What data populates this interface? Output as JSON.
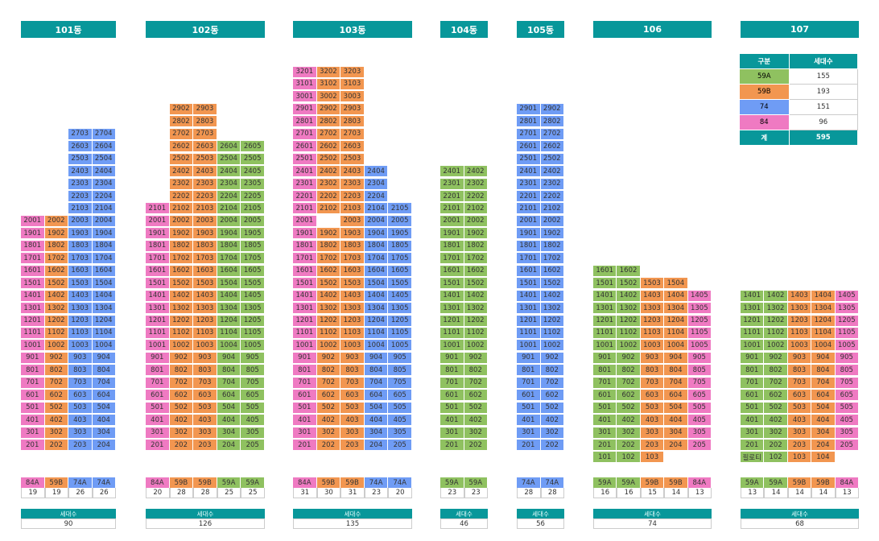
{
  "colors": {
    "59A": "#8fc160",
    "59B": "#f29650",
    "74": "#6f9cf5",
    "84": "#ef7ac2"
  },
  "buildings": [
    {
      "name": "101동",
      "top_floor": 27,
      "units": [
        {
          "suffix": "01",
          "type": "84",
          "top": 20
        },
        {
          "suffix": "02",
          "type": "59B",
          "top": 20
        },
        {
          "suffix": "03",
          "type": "74",
          "top": 27
        },
        {
          "suffix": "04",
          "type": "74",
          "top": 27
        }
      ],
      "type_labels": [
        "84A",
        "59B",
        "74A",
        "74A"
      ],
      "counts": [
        "19",
        "19",
        "26",
        "26"
      ],
      "total_label": "세대수",
      "total": "90"
    },
    {
      "name": "102동",
      "top_floor": 29,
      "units": [
        {
          "suffix": "01",
          "type": "84",
          "top": 21
        },
        {
          "suffix": "02",
          "type": "59B",
          "top": 29
        },
        {
          "suffix": "03",
          "type": "59B",
          "top": 29
        },
        {
          "suffix": "04",
          "type": "59A",
          "top": 26
        },
        {
          "suffix": "05",
          "type": "59A",
          "top": 26
        }
      ],
      "type_labels": [
        "84A",
        "59B",
        "59B",
        "59A",
        "59A"
      ],
      "counts": [
        "20",
        "28",
        "28",
        "25",
        "25"
      ],
      "total_label": "세대수",
      "total": "126"
    },
    {
      "name": "103동",
      "top_floor": 32,
      "units": [
        {
          "suffix": "01",
          "type": "84",
          "top": 32
        },
        {
          "suffix": "02",
          "type": "59B",
          "top": 32
        },
        {
          "suffix": "03",
          "type": "59B",
          "top": 32
        },
        {
          "suffix": "04",
          "type": "74",
          "top": 24
        },
        {
          "suffix": "05",
          "type": "74",
          "top": 21
        }
      ],
      "empty": [
        "2002"
      ],
      "type_labels": [
        "84A",
        "59B",
        "59B",
        "74A",
        "74A"
      ],
      "counts": [
        "31",
        "30",
        "31",
        "23",
        "20"
      ],
      "total_label": "세대수",
      "total": "135"
    },
    {
      "name": "104동",
      "top_floor": 24,
      "units": [
        {
          "suffix": "01",
          "type": "59A",
          "top": 24
        },
        {
          "suffix": "02",
          "type": "59A",
          "top": 24
        }
      ],
      "type_labels": [
        "59A",
        "59A"
      ],
      "counts": [
        "23",
        "23"
      ],
      "total_label": "세대수",
      "total": "46"
    },
    {
      "name": "105동",
      "top_floor": 29,
      "units": [
        {
          "suffix": "01",
          "type": "74",
          "top": 29
        },
        {
          "suffix": "02",
          "type": "74",
          "top": 29
        }
      ],
      "type_labels": [
        "74A",
        "74A"
      ],
      "counts": [
        "28",
        "28"
      ],
      "total_label": "세대수",
      "total": "56"
    },
    {
      "name": "106",
      "top_floor": 16,
      "bottom_floor": 1,
      "units": [
        {
          "suffix": "01",
          "type": "59A",
          "top": 16
        },
        {
          "suffix": "02",
          "type": "59A",
          "top": 16
        },
        {
          "suffix": "03",
          "type": "59B",
          "top": 15
        },
        {
          "suffix": "04",
          "type": "59B",
          "top": 15
        },
        {
          "suffix": "05",
          "type": "84",
          "top": 14
        }
      ],
      "first_floor": [
        "101",
        "102",
        "103"
      ],
      "type_labels": [
        "59A",
        "59A",
        "59B",
        "59B",
        "84A"
      ],
      "counts": [
        "16",
        "16",
        "15",
        "14",
        "13"
      ],
      "total_label": "세대수",
      "total": "74"
    },
    {
      "name": "107",
      "top_floor": 14,
      "bottom_floor": 1,
      "units": [
        {
          "suffix": "01",
          "type": "59A",
          "top": 14
        },
        {
          "suffix": "02",
          "type": "59A",
          "top": 14
        },
        {
          "suffix": "03",
          "type": "59B",
          "top": 14
        },
        {
          "suffix": "04",
          "type": "59B",
          "top": 14
        },
        {
          "suffix": "05",
          "type": "84",
          "top": 14
        }
      ],
      "first_floor": [
        "필로티",
        "102",
        "103",
        "104"
      ],
      "type_labels": [
        "59A",
        "59A",
        "59B",
        "59B",
        "84A"
      ],
      "counts": [
        "13",
        "14",
        "14",
        "14",
        "13"
      ],
      "total_label": "세대수",
      "total": "68"
    }
  ],
  "legend": {
    "header_type": "구분",
    "header_count": "세대수",
    "rows": [
      {
        "label": "59A",
        "type": "59A",
        "count": "155"
      },
      {
        "label": "59B",
        "type": "59B",
        "count": "193"
      },
      {
        "label": "74",
        "type": "74",
        "count": "151"
      },
      {
        "label": "84",
        "type": "84",
        "count": "96"
      }
    ],
    "total_label": "계",
    "total": "595"
  }
}
